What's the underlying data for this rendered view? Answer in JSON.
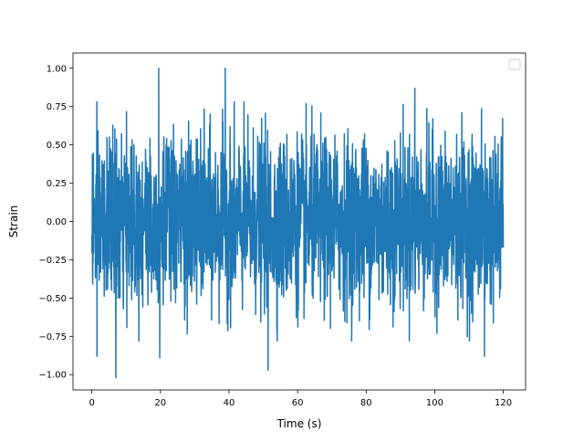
{
  "chart_data": {
    "type": "line",
    "title": "",
    "xlabel": "Time (s)",
    "ylabel": "Strain",
    "xlim": [
      -5.5,
      126.5
    ],
    "ylim": [
      -1.1,
      1.1
    ],
    "x_ticks": [
      0,
      20,
      40,
      60,
      80,
      100,
      120
    ],
    "y_ticks": [
      -1.0,
      -0.75,
      -0.5,
      -0.25,
      0.0,
      0.25,
      0.5,
      0.75,
      1.0
    ],
    "x_tick_labels": [
      "0",
      "20",
      "40",
      "60",
      "80",
      "100",
      "120"
    ],
    "y_tick_labels": [
      "−1.00",
      "−0.75",
      "−0.50",
      "−0.25",
      "0.00",
      "0.25",
      "0.50",
      "0.75",
      "1.00"
    ],
    "grid": false,
    "legend": {
      "placement": "upper right",
      "entries": []
    },
    "series": [
      {
        "color": "#1f77b4",
        "x_range": [
          0,
          120
        ],
        "y_range": [
          -1.02,
          1.0
        ],
        "notable_points": [
          {
            "x": 19.5,
            "y": 1.0
          },
          {
            "x": 38.9,
            "y": 1.0
          },
          {
            "x": 7.0,
            "y": -1.02
          },
          {
            "x": 51.4,
            "y": -0.97
          },
          {
            "x": 94.2,
            "y": 0.87
          },
          {
            "x": 19.8,
            "y": -0.89
          },
          {
            "x": 1.5,
            "y": -0.88
          },
          {
            "x": 114.5,
            "y": -0.88
          }
        ]
      }
    ]
  }
}
